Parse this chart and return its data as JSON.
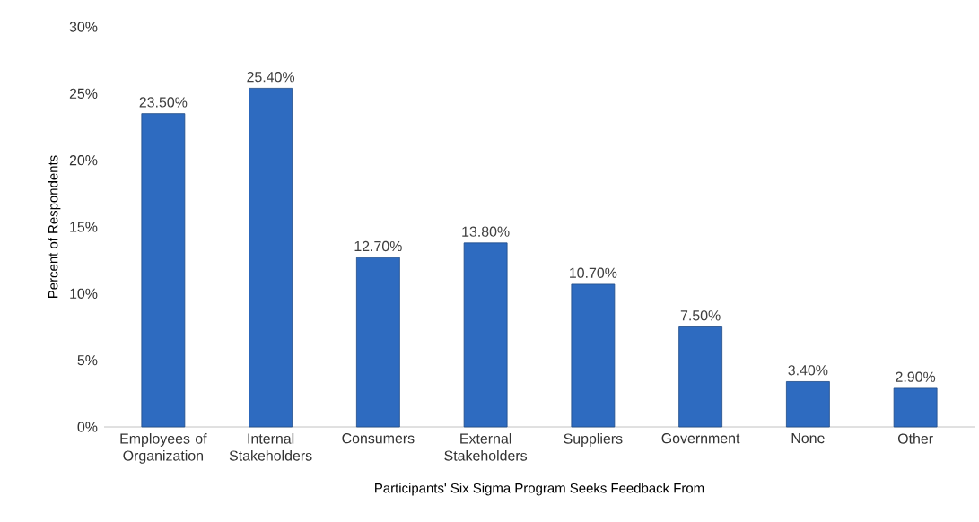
{
  "chart_data": {
    "type": "bar",
    "xlabel": "Participants' Six Sigma Program Seeks Feedback From",
    "ylabel": "Percent of Respondents",
    "categories": [
      "Employees of Organization",
      "Internal Stakeholders",
      "Consumers",
      "External Stakeholders",
      "Suppliers",
      "Government",
      "None",
      "Other"
    ],
    "values": [
      23.5,
      25.4,
      12.7,
      13.8,
      10.7,
      7.5,
      3.4,
      2.9
    ],
    "value_labels": [
      "23.50%",
      "25.40%",
      "12.70%",
      "13.80%",
      "10.70%",
      "7.50%",
      "3.40%",
      "2.90%"
    ],
    "color": "#2e6bc0",
    "ylim": [
      0,
      30
    ],
    "yticks": [
      {
        "value": 0,
        "label": "0%"
      },
      {
        "value": 5,
        "label": "5%"
      },
      {
        "value": 10,
        "label": "10%"
      },
      {
        "value": 15,
        "label": "15%"
      },
      {
        "value": 20,
        "label": "20%"
      },
      {
        "value": 25,
        "label": "25%"
      },
      {
        "value": 30,
        "label": "30%"
      }
    ],
    "grid": false
  }
}
